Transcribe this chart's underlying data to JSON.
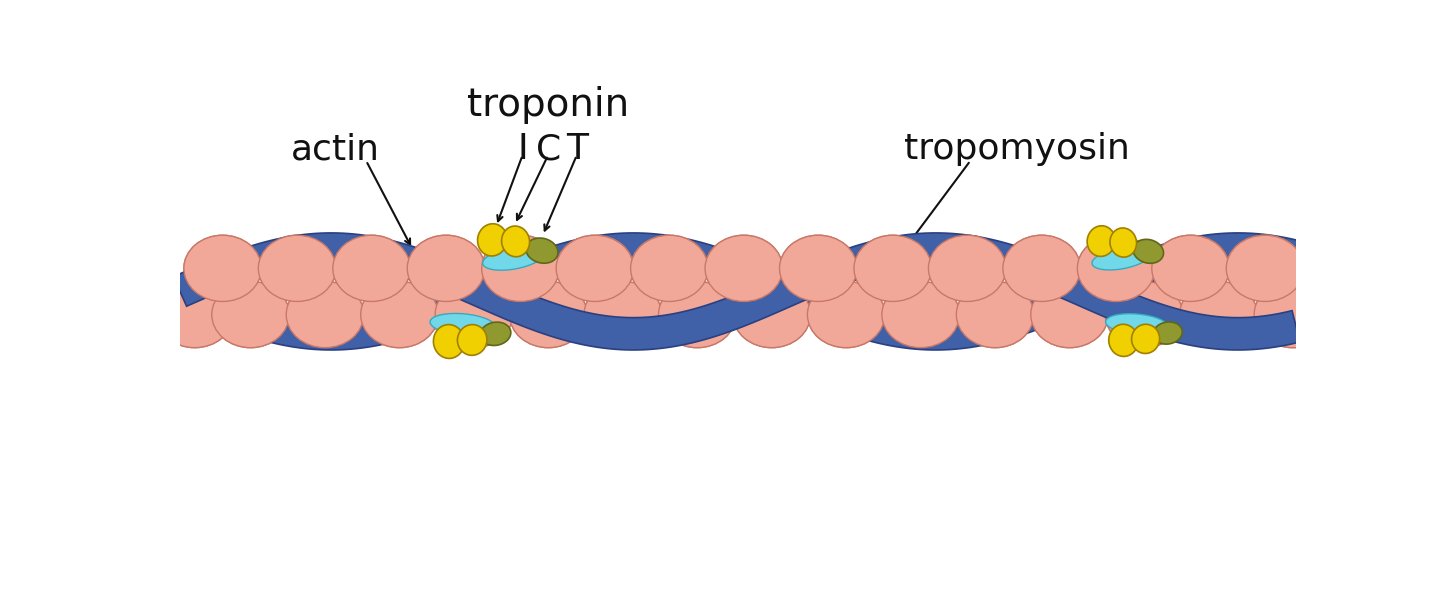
{
  "bg_color": "#ffffff",
  "actin_color": "#F2A898",
  "actin_edge": "#c87868",
  "tropomyosin_color": "#4060a8",
  "tropomyosin_edge": "#2a4080",
  "troponin_yellow_color": "#f0d000",
  "troponin_yellow_edge": "#a08000",
  "troponin_olive_color": "#909830",
  "troponin_olive_edge": "#606818",
  "cyan_patch_color": "#70d8e8",
  "cyan_patch_edge": "#38a8c0",
  "label_actin": "actin",
  "label_troponin": "troponin",
  "label_I": "I",
  "label_C": "C",
  "label_T": "T",
  "label_tropomyosin": "tropomyosin",
  "label_fontsize": 26,
  "label_color": "#111111"
}
